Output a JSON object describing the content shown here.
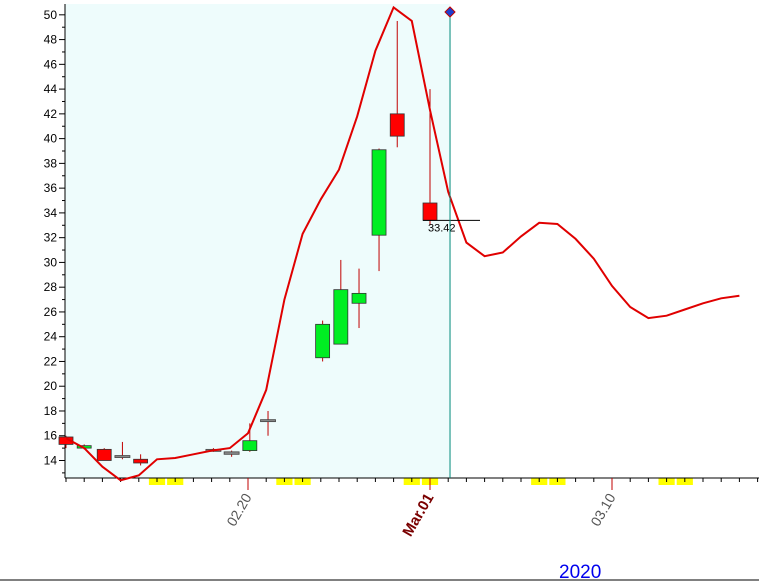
{
  "chart_data": {
    "type": "candlestick",
    "year_label": "2020",
    "ylim": [
      12.5,
      50.7
    ],
    "y_ticks": [
      14,
      16,
      18,
      20,
      22,
      24,
      26,
      28,
      30,
      32,
      34,
      36,
      38,
      40,
      42,
      44,
      46,
      48,
      50
    ],
    "x_tick_labels": [
      {
        "text": "02.20",
        "day": 10,
        "bold": false
      },
      {
        "text": "Mar.01",
        "day": 20,
        "bold": true
      },
      {
        "text": "03.10",
        "day": 30,
        "bold": false
      }
    ],
    "last_price_label": "33.42",
    "last_price": 33.4,
    "cursor_day": 21.1,
    "candles": [
      {
        "day": 0.0,
        "open": 15.3,
        "high": 16.0,
        "low": 15.0,
        "close": 15.9,
        "color": "red"
      },
      {
        "day": 1.0,
        "open": 15.0,
        "high": 15.3,
        "low": 14.9,
        "close": 15.2,
        "color": "green"
      },
      {
        "day": 2.1,
        "open": 14.9,
        "high": 15.0,
        "low": 14.0,
        "close": 14.0,
        "color": "red"
      },
      {
        "day": 3.1,
        "open": 14.3,
        "high": 15.5,
        "low": 14.1,
        "close": 14.4,
        "color": "gray"
      },
      {
        "day": 4.1,
        "open": 14.1,
        "high": 14.5,
        "low": 13.6,
        "close": 13.8,
        "color": "red"
      },
      {
        "day": 8.1,
        "open": 14.8,
        "high": 15.0,
        "low": 14.7,
        "close": 14.9,
        "color": "gray"
      },
      {
        "day": 9.1,
        "open": 14.5,
        "high": 14.8,
        "low": 14.3,
        "close": 14.7,
        "color": "gray"
      },
      {
        "day": 10.1,
        "open": 14.8,
        "high": 17.0,
        "low": 14.7,
        "close": 15.6,
        "color": "green"
      },
      {
        "day": 11.1,
        "open": 17.2,
        "high": 18.0,
        "low": 16.0,
        "close": 17.3,
        "color": "gray"
      },
      {
        "day": 14.1,
        "open": 22.3,
        "high": 25.3,
        "low": 22.0,
        "close": 25.0,
        "color": "green"
      },
      {
        "day": 15.1,
        "open": 23.4,
        "high": 30.2,
        "low": 23.4,
        "close": 27.8,
        "color": "green"
      },
      {
        "day": 16.1,
        "open": 26.7,
        "high": 29.5,
        "low": 24.7,
        "close": 27.5,
        "color": "green"
      },
      {
        "day": 17.2,
        "open": 32.2,
        "high": 39.2,
        "low": 29.3,
        "close": 39.1,
        "color": "green"
      },
      {
        "day": 18.2,
        "open": 42.0,
        "high": 49.5,
        "low": 39.3,
        "close": 40.2,
        "color": "red"
      },
      {
        "day": 20.0,
        "open": 34.8,
        "high": 44.0,
        "low": 33.0,
        "close": 33.4,
        "color": "red"
      }
    ],
    "forecast_line": {
      "x": [
        0,
        1,
        2,
        3,
        4,
        5,
        6,
        7,
        8,
        9,
        10,
        11,
        12,
        13,
        14,
        15,
        16,
        17,
        18,
        19,
        20,
        21,
        22,
        23,
        24,
        25,
        26,
        27,
        28,
        29,
        30,
        31,
        32,
        33,
        34,
        35,
        36,
        37
      ],
      "y": [
        15.8,
        15.0,
        13.5,
        12.4,
        12.8,
        14.1,
        14.2,
        14.5,
        14.8,
        15.0,
        16.2,
        19.7,
        27.0,
        32.3,
        35.1,
        37.5,
        41.8,
        47.1,
        50.6,
        49.5,
        42.3,
        35.7,
        31.6,
        30.5,
        30.8,
        32.1,
        33.2,
        33.1,
        31.9,
        30.3,
        28.1,
        26.4,
        25.5,
        25.7,
        26.2,
        26.7,
        27.1,
        27.3
      ]
    },
    "highlight_days": [
      5,
      6,
      12,
      13,
      19,
      20,
      26,
      27,
      33,
      34
    ]
  }
}
